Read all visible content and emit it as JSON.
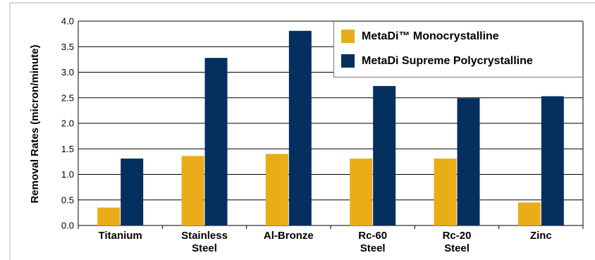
{
  "chart_data": {
    "type": "bar",
    "ylabel": "Removal Rates (micron/minute)",
    "xlabel": "",
    "ylim": [
      0,
      4.0
    ],
    "yticks": [
      "0.0",
      "0.5",
      "1.0",
      "1.5",
      "2.0",
      "2.5",
      "3.0",
      "3.5",
      "4.0"
    ],
    "grid": true,
    "legend_position": "top-right",
    "categories": [
      [
        "Titanium"
      ],
      [
        "Stainless",
        "Steel"
      ],
      [
        "Al-Bronze"
      ],
      [
        "Rc-60",
        "Steel"
      ],
      [
        "Rc-20",
        "Steel"
      ],
      [
        "Zinc"
      ]
    ],
    "series": [
      {
        "name": "MetaDi™ Monocrystalline",
        "color": "#e8ad19",
        "values": [
          0.35,
          1.36,
          1.4,
          1.31,
          1.31,
          0.45
        ]
      },
      {
        "name": "MetaDi Supreme Polycrystalline",
        "color": "#052f5f",
        "values": [
          1.31,
          3.28,
          3.81,
          2.73,
          2.49,
          2.53
        ]
      }
    ]
  }
}
